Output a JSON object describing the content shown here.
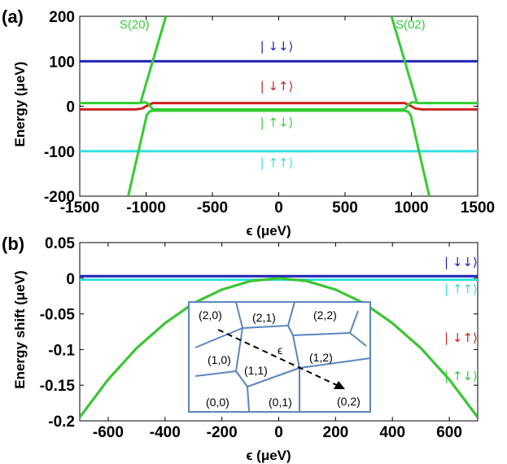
{
  "colors": {
    "blue": "#1f1fb8",
    "red": "#cc2222",
    "green": "#33cc33",
    "cyan": "#33e0e0",
    "inset_line": "#5a86bd"
  },
  "chart_data": [
    {
      "type": "line",
      "panel_label": "(a)",
      "xlabel": "ϵ (μeV)",
      "ylabel": "Energy (μeV)",
      "xlim": [
        -1500,
        1500
      ],
      "ylim": [
        -200,
        200
      ],
      "xticks": [
        "-1500",
        "-1000",
        "-500",
        "0",
        "500",
        "1000",
        "1500"
      ],
      "yticks": [
        "200",
        "100",
        "0",
        "-100",
        "-200"
      ],
      "series": [
        {
          "name": "| ↓↓⟩",
          "color": "#1f1fb8",
          "x": [
            -1500,
            1500
          ],
          "y": [
            100,
            100
          ]
        },
        {
          "name": "| ↓↑⟩",
          "color": "#cc2222",
          "x": [
            -1500,
            -1080,
            -1030,
            -1000,
            -950,
            950,
            1000,
            1030,
            1080,
            1500
          ],
          "y": [
            -7,
            -7,
            -5,
            0,
            7,
            7,
            0,
            -5,
            -7,
            -7
          ]
        },
        {
          "name": "| ↑↓⟩",
          "color": "#33cc33",
          "x": [
            -1500,
            -1050,
            -1010,
            -980,
            -950,
            950,
            980,
            1010,
            1050,
            1500
          ],
          "y": [
            7,
            7,
            9,
            5,
            -7,
            -7,
            5,
            9,
            7,
            7
          ]
        },
        {
          "name": "| ↑↑⟩",
          "color": "#33e0e0",
          "x": [
            -1500,
            1500
          ],
          "y": [
            -100,
            -100
          ]
        },
        {
          "name": "S(20) lower",
          "color": "#33cc33",
          "x": [
            -1135,
            -995,
            -975,
            -950,
            950,
            975,
            995,
            1135
          ],
          "y": [
            -200,
            -20,
            -12,
            -10,
            -10,
            -12,
            -20,
            -200
          ]
        },
        {
          "name": "S(20) upper",
          "color": "#33cc33",
          "x": [
            -850,
            -1040
          ],
          "y": [
            200,
            10
          ]
        },
        {
          "name": "S(02) upper",
          "color": "#33cc33",
          "x": [
            850,
            1040
          ],
          "y": [
            200,
            10
          ]
        }
      ],
      "annotations": [
        {
          "text": "S(20)",
          "color": "#33cc33",
          "x": -1200,
          "y": 173
        },
        {
          "text": "S(02)",
          "color": "#33cc33",
          "x": 880,
          "y": 173
        },
        {
          "text": "| ↓↓⟩",
          "color": "#1f1fb8",
          "x": -140,
          "y": 124
        },
        {
          "text": "| ↓↑⟩",
          "color": "#cc2222",
          "x": -140,
          "y": 35
        },
        {
          "text": "| ↑↓⟩",
          "color": "#33cc33",
          "x": -140,
          "y": -45
        },
        {
          "text": "| ↑↑⟩",
          "color": "#33e0e0",
          "x": -140,
          "y": -135
        }
      ]
    },
    {
      "type": "line",
      "panel_label": "(b)",
      "xlabel": "ϵ (μeV)",
      "ylabel": "Energy shift (μeV)",
      "xlim": [
        -700,
        700
      ],
      "ylim": [
        -0.2,
        0.05
      ],
      "xticks": [
        "-600",
        "-400",
        "-200",
        "0",
        "200",
        "400",
        "600"
      ],
      "yticks": [
        "0.05",
        "0",
        "-0.05",
        "-0.1",
        "-0.15",
        "-0.2"
      ],
      "series": [
        {
          "name": "| ↓↓⟩",
          "color": "#1f1fb8",
          "x": [
            -700,
            700
          ],
          "y": [
            0.003,
            0.003
          ]
        },
        {
          "name": "| ↑↑⟩",
          "color": "#33e0e0",
          "x": [
            -700,
            700
          ],
          "y": [
            -0.002,
            -0.002
          ]
        },
        {
          "name": "| ↓↑⟩",
          "color": "#cc2222",
          "x": [
            -700,
            -600,
            -500,
            -400,
            -300,
            -200,
            -100,
            0,
            100,
            200,
            300,
            400,
            500,
            600,
            700
          ],
          "y": [
            -0.195,
            -0.142,
            -0.098,
            -0.063,
            -0.035,
            -0.016,
            -0.004,
            0.0,
            -0.004,
            -0.016,
            -0.035,
            -0.063,
            -0.098,
            -0.142,
            -0.195
          ]
        },
        {
          "name": "| ↑↓⟩",
          "color": "#33cc33",
          "x": [
            -700,
            -600,
            -500,
            -400,
            -300,
            -200,
            -100,
            0,
            100,
            200,
            300,
            400,
            500,
            600,
            700
          ],
          "y": [
            -0.195,
            -0.142,
            -0.098,
            -0.063,
            -0.035,
            -0.016,
            -0.004,
            0.0,
            -0.004,
            -0.016,
            -0.035,
            -0.063,
            -0.098,
            -0.142,
            -0.195
          ]
        }
      ],
      "legend_labels": [
        {
          "text": "| ↓↓⟩",
          "color": "#1f1fb8"
        },
        {
          "text": "| ↑↑⟩",
          "color": "#33e0e0"
        },
        {
          "text": "| ↓↑⟩",
          "color": "#cc2222"
        },
        {
          "text": "| ↑↓⟩",
          "color": "#33cc33"
        }
      ],
      "inset": {
        "cells": [
          "(2,0)",
          "(2,1)",
          "(2,2)",
          "(1,0)",
          "(1,1)",
          "(1,2)",
          "(0,0)",
          "(0,1)",
          "(0,2)"
        ],
        "arrow_label": "ϵ"
      }
    }
  ]
}
